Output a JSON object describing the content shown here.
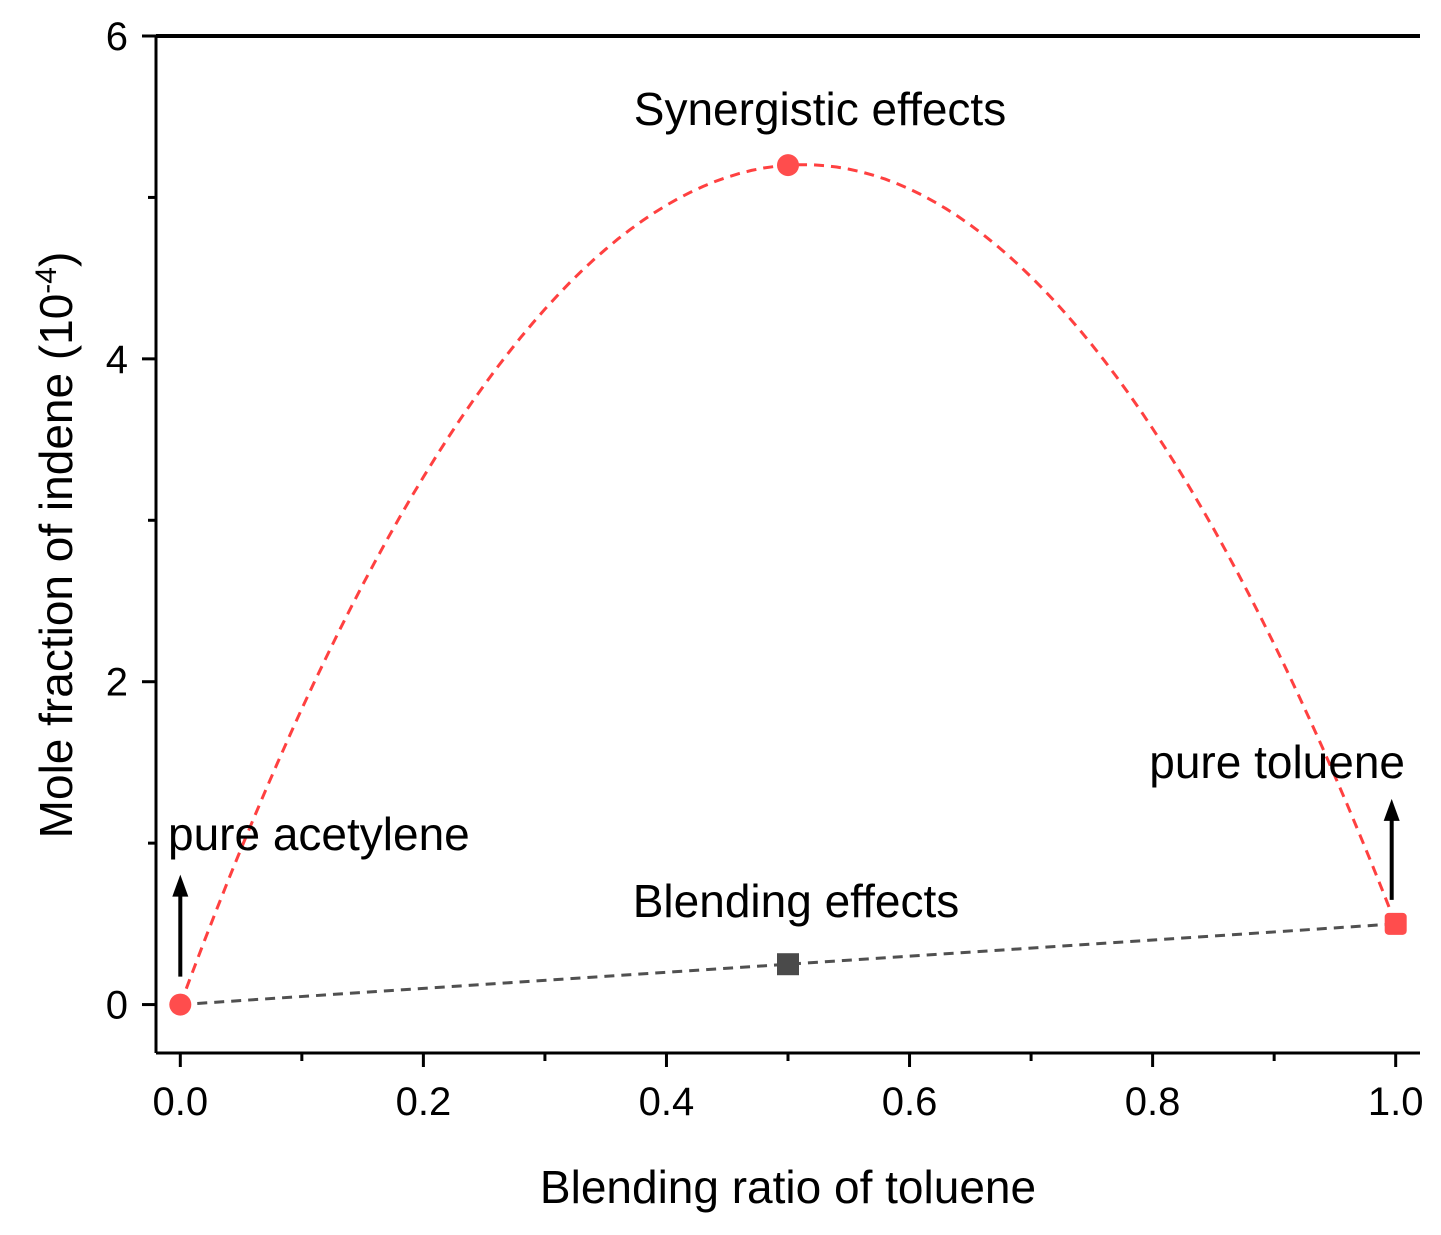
{
  "chart_data": {
    "type": "line",
    "title": "",
    "xlabel": "Blending ratio of toluene",
    "ylabel_main": "Mole fraction of indene (10",
    "ylabel_exp": "-4",
    "ylabel_close": ")",
    "xlim": [
      -0.02,
      1.02
    ],
    "ylim": [
      -0.3,
      6
    ],
    "x_ticks": [
      0.0,
      0.2,
      0.4,
      0.6,
      0.8,
      1.0
    ],
    "x_tick_labels": [
      "0.0",
      "0.2",
      "0.4",
      "0.6",
      "0.8",
      "1.0"
    ],
    "x_minor_ticks": [
      0.1,
      0.3,
      0.5,
      0.7,
      0.9
    ],
    "y_ticks": [
      0,
      2,
      4,
      6
    ],
    "y_tick_labels": [
      "0",
      "2",
      "4",
      "6"
    ],
    "y_minor_ticks": [
      1,
      3,
      5
    ],
    "series": [
      {
        "name": "Synergistic effects",
        "color": "#ff4040",
        "marker": "circle",
        "x": [
          0.0,
          0.5,
          1.0
        ],
        "values": [
          0.0,
          5.2,
          0.5
        ],
        "curve": "smooth-quadratic"
      },
      {
        "name": "Blending effects",
        "color": "#505050",
        "marker": "square",
        "x": [
          0.0,
          0.5,
          1.0
        ],
        "values": [
          0.0,
          0.25,
          0.5
        ],
        "curve": "linear"
      }
    ],
    "annotations": {
      "synergistic": "Synergistic effects",
      "blending": "Blending effects",
      "pure_acetylene": "pure acetylene",
      "pure_toluene": "pure toluene"
    },
    "colors": {
      "synergistic": "#ff4040",
      "blending": "#505050",
      "marker_fill": "#ff4d4d",
      "square_fill": "#4a4a4a",
      "axis": "#000000"
    }
  }
}
